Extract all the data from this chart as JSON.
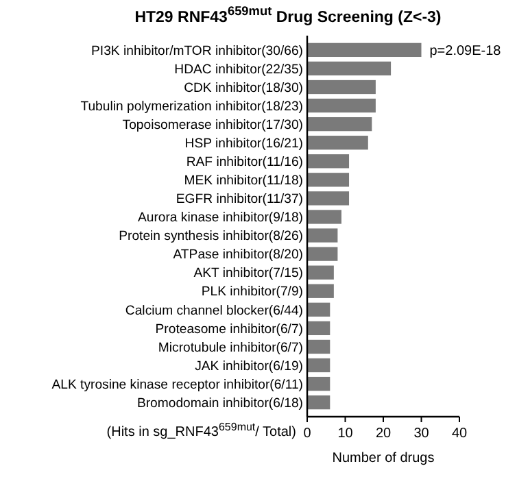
{
  "chart_data": {
    "type": "bar",
    "orientation": "horizontal",
    "title": "HT29 RNF43$^{659mut}$ Drug Screening (Z<-3)",
    "xlabel": "Number of  drugs",
    "categories": [
      "PI3K inhibitor/mTOR inhibitor(30/66)",
      "HDAC inhibitor(22/35)",
      "CDK inhibitor(18/30)",
      "Tubulin polymerization inhibitor(18/23)",
      "Topoisomerase inhibitor(17/30)",
      "HSP inhibitor(16/21)",
      "RAF inhibitor(11/16)",
      "MEK inhibitor(11/18)",
      "EGFR inhibitor(11/37)",
      "Aurora kinase inhibitor(9/18)",
      "Protein synthesis inhibitor(8/26)",
      "ATPase inhibitor(8/20)",
      "AKT inhibitor(7/15)",
      "PLK inhibitor(7/9)",
      "Calcium channel blocker(6/44)",
      "Proteasome inhibitor(6/7)",
      "Microtubule inhibitor(6/7)",
      "JAK inhibitor(6/19)",
      "ALK tyrosine kinase receptor inhibitor(6/11)",
      "Bromodomain inhibitor(6/18)"
    ],
    "values": [
      30,
      22,
      18,
      18,
      17,
      16,
      11,
      11,
      11,
      9,
      8,
      8,
      7,
      7,
      6,
      6,
      6,
      6,
      6,
      6
    ],
    "color": "#7a7a7a",
    "xlim": [
      0,
      40
    ],
    "xticks": [
      0,
      10,
      20,
      30,
      40
    ],
    "annotations": [
      {
        "text": "p=2.09E-18",
        "x": 30,
        "y": "PI3K inhibitor/mTOR inhibitor(30/66)"
      },
      "(Hits in sg_RNF43$^{659mut}$/ Total)"
    ]
  }
}
